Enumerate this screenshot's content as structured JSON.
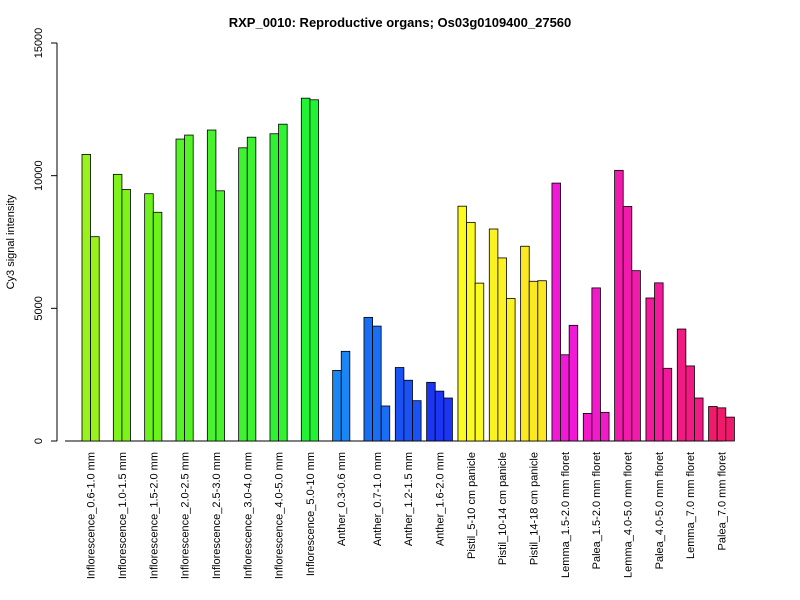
{
  "chart_data": {
    "type": "bar",
    "title": "RXP_0010: Reproductive organs; Os03g0109400_27560",
    "xlabel": "",
    "ylabel": "Cy3 signal intensity",
    "ylim": [
      0,
      15000
    ],
    "yticks": [
      "0",
      "5000",
      "10000",
      "15000"
    ],
    "grid": false,
    "groups": [
      {
        "label": "Inflorescence_0.6-1.0 mm",
        "color": "#9af21c",
        "values": [
          10800,
          7700
        ]
      },
      {
        "label": "Inflorescence_1.0-1.5 mm",
        "color": "#7ff21c",
        "values": [
          10050,
          9480
        ]
      },
      {
        "label": "Inflorescence_1.5-2.0 mm",
        "color": "#6ef21c",
        "values": [
          9320,
          8620
        ]
      },
      {
        "label": "Inflorescence_2.0-2.5 mm",
        "color": "#55f227",
        "values": [
          11380,
          11530
        ]
      },
      {
        "label": "Inflorescence_2.5-3.0 mm",
        "color": "#48f22c",
        "values": [
          11720,
          9430
        ]
      },
      {
        "label": "Inflorescence_3.0-4.0 mm",
        "color": "#3ef231",
        "values": [
          11050,
          11450
        ]
      },
      {
        "label": "Inflorescence_4.0-5.0 mm",
        "color": "#30f232",
        "values": [
          11580,
          11940
        ]
      },
      {
        "label": "Inflorescence_5.0-10 mm",
        "color": "#22f236",
        "values": [
          12920,
          12860
        ]
      },
      {
        "label": "Anther_0.3-0.6 mm",
        "color": "#1a86f4",
        "values": [
          2660,
          3380
        ]
      },
      {
        "label": "Anther_0.7-1.0 mm",
        "color": "#1a6ef4",
        "values": [
          4660,
          4330,
          1320
        ]
      },
      {
        "label": "Anther_1.2-1.5 mm",
        "color": "#1a52f4",
        "values": [
          2770,
          2290,
          1520
        ]
      },
      {
        "label": "Anther_1.6-2.0 mm",
        "color": "#1a36f4",
        "values": [
          2210,
          1880,
          1620
        ]
      },
      {
        "label": "Pistil_5-10 cm panicle",
        "color": "#fbfb22",
        "values": [
          8850,
          8240,
          5950
        ]
      },
      {
        "label": "Pistil_10-14 cm panicle",
        "color": "#fbf222",
        "values": [
          7990,
          6900,
          5370
        ]
      },
      {
        "label": "Pistil_14-18 cm panicle",
        "color": "#fbe822",
        "values": [
          7340,
          6020,
          6040
        ]
      },
      {
        "label": "Lemma_1.5-2.0 mm floret",
        "color": "#f01ad6",
        "values": [
          9720,
          3250,
          4360
        ]
      },
      {
        "label": "Palea_1.5-2.0 mm floret",
        "color": "#f01ac9",
        "values": [
          1040,
          5770,
          1080
        ]
      },
      {
        "label": "Lemma_4.0-5.0 mm floret",
        "color": "#f01aab",
        "values": [
          10200,
          8840,
          6420
        ]
      },
      {
        "label": "Palea_4.0-5.0 mm floret",
        "color": "#f01a9b",
        "values": [
          5390,
          5960,
          2740
        ]
      },
      {
        "label": "Lemma_7.0 mm floret",
        "color": "#f01a82",
        "values": [
          4220,
          2830,
          1620
        ]
      },
      {
        "label": "Palea_7.0 mm floret",
        "color": "#f01a6c",
        "values": [
          1300,
          1250,
          900
        ]
      }
    ]
  }
}
